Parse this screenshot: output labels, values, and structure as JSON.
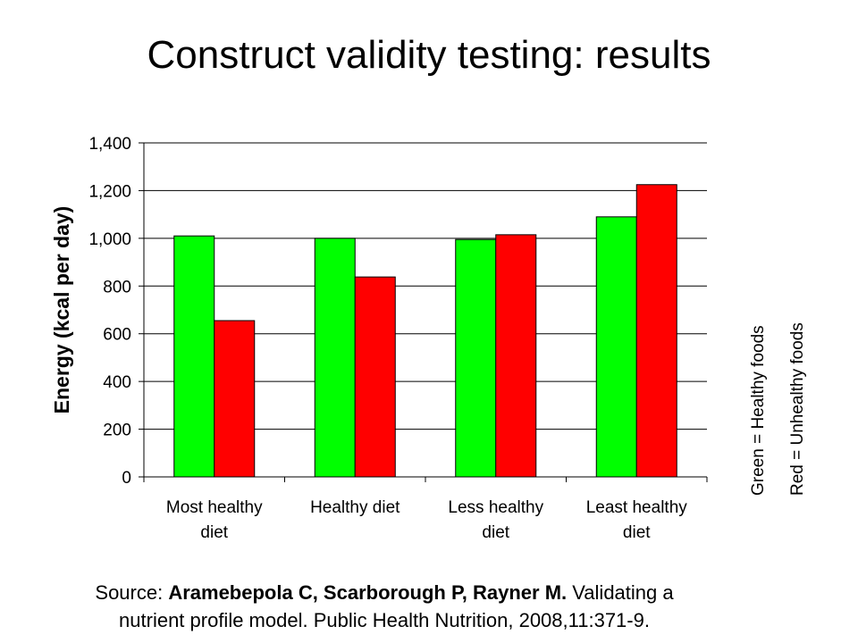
{
  "page": {
    "title": "Construct validity testing: results"
  },
  "source": {
    "prefix": "Source: ",
    "authors": "Aramebepola C, Scarborough P, Rayner M.",
    "line1_rest": " Validating a",
    "line2": "nutrient profile model. Public Health Nutrition, 2008,11:371-9."
  },
  "chart_data": {
    "type": "bar",
    "title": "",
    "xlabel": "",
    "ylabel": "Energy (kcal per day)",
    "ylim": [
      0,
      1400
    ],
    "yticks": [
      0,
      200,
      400,
      600,
      800,
      1000,
      1200,
      1400
    ],
    "ytick_labels": [
      "0",
      "200",
      "400",
      "600",
      "800",
      "1,000",
      "1,200",
      "1,400"
    ],
    "grid": true,
    "categories": [
      [
        "Most healthy",
        "diet"
      ],
      [
        "Healthy diet"
      ],
      [
        "Less healthy",
        "diet"
      ],
      [
        "Least healthy",
        "diet"
      ]
    ],
    "series": [
      {
        "color": "#00ff00",
        "values": [
          1010,
          1000,
          995,
          1090
        ]
      },
      {
        "color": "#ff0000",
        "values": [
          655,
          838,
          1015,
          1225
        ]
      }
    ],
    "legend": {
      "placement": "right (rotated text)",
      "entries": [
        {
          "label": "Green = Healthy foods",
          "color": "#00ff00"
        },
        {
          "label": "Red = Unhealthy foods",
          "color": "#ff0000"
        }
      ]
    }
  }
}
